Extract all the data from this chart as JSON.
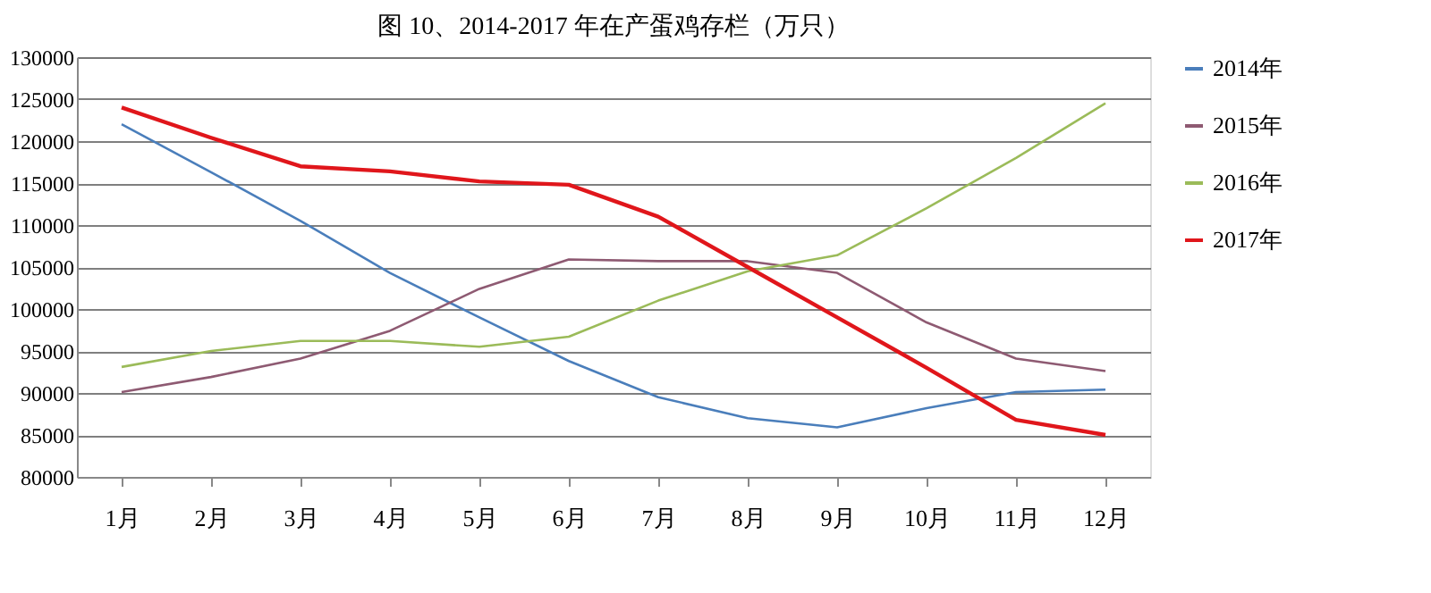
{
  "chart_data": {
    "type": "line",
    "title": "图 10、2014-2017 年在产蛋鸡存栏（万只）",
    "categories": [
      "1月",
      "2月",
      "3月",
      "4月",
      "5月",
      "6月",
      "7月",
      "8月",
      "9月",
      "10月",
      "11月",
      "12月"
    ],
    "series": [
      {
        "name": "2014年",
        "color": "#4a7ebb",
        "values": [
          122000,
          116300,
          110500,
          104300,
          99000,
          93800,
          89500,
          87000,
          85900,
          88200,
          90100,
          90400
        ]
      },
      {
        "name": "2015年",
        "color": "#8e5a72",
        "values": [
          90100,
          91900,
          94100,
          97400,
          102400,
          105900,
          105700,
          105700,
          104300,
          98400,
          94100,
          92600
        ]
      },
      {
        "name": "2016年",
        "color": "#9bbb59",
        "values": [
          93100,
          95000,
          96200,
          96200,
          95500,
          96700,
          101000,
          104500,
          106400,
          112000,
          118000,
          124500
        ]
      },
      {
        "name": "2017年",
        "color": "#e0161b",
        "values": [
          124000,
          120400,
          117000,
          116400,
          115200,
          114800,
          111000,
          105000,
          99000,
          93000,
          86800,
          85000
        ]
      }
    ],
    "ylim": [
      80000,
      130000
    ],
    "yticks": [
      80000,
      85000,
      90000,
      95000,
      100000,
      105000,
      110000,
      115000,
      120000,
      125000,
      130000
    ],
    "grid": "y",
    "legend": "right"
  }
}
